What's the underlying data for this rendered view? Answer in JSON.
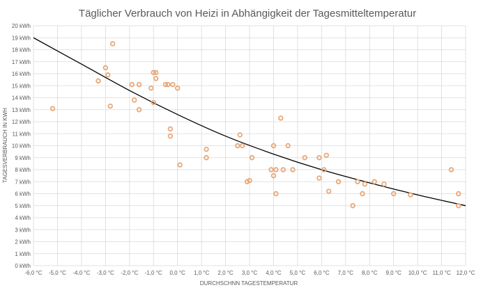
{
  "chart_data": {
    "type": "scatter",
    "title": "Täglicher Verbrauch von Heizi in Abhängigkeit der Tagesmitteltemperatur",
    "xlabel": "DURCHSCHNN TAGESTEMPERATUR",
    "ylabel": "TAGESVERBRAUCH IN KWH",
    "xlim": [
      -6,
      12
    ],
    "ylim": [
      0,
      20
    ],
    "x_ticks": [
      -6,
      -5,
      -4,
      -3,
      -2,
      -1,
      0,
      1,
      2,
      3,
      4,
      5,
      6,
      7,
      8,
      9,
      10,
      11,
      12
    ],
    "x_tick_labels": [
      "-6,0 °C",
      "-5,0 °C",
      "-4,0 °C",
      "-3,0 °C",
      "-2,0 °C",
      "-1,0 °C",
      "0,0 °C",
      "1,0 °C",
      "2,0 °C",
      "3,0 °C",
      "4,0 °C",
      "5,0 °C",
      "6,0 °C",
      "7,0 °C",
      "8,0 °C",
      "9,0 °C",
      "10,0 °C",
      "11,0 °C",
      "12,0 °C"
    ],
    "y_ticks": [
      0,
      1,
      2,
      3,
      4,
      5,
      6,
      7,
      8,
      9,
      10,
      11,
      12,
      13,
      14,
      15,
      16,
      17,
      18,
      19,
      20
    ],
    "y_tick_labels": [
      "0 kWh",
      "1 kWh",
      "2 kWh",
      "3 kWh",
      "4 kWh",
      "5 kWh",
      "6 kWh",
      "7 kWh",
      "8 kWh",
      "9 kWh",
      "10 kWh",
      "11 kWh",
      "12 kWh",
      "13 kWh",
      "14 kWh",
      "15 kWh",
      "16 kWh",
      "17 kWh",
      "18 kWh",
      "19 kWh",
      "20 kWh"
    ],
    "grid": true,
    "marker_color": "#e8a878",
    "trend_color": "#000000",
    "grid_color": "#d9d9d9",
    "points": [
      {
        "x": -5.2,
        "y": 13.1
      },
      {
        "x": -3.3,
        "y": 15.4
      },
      {
        "x": -3.0,
        "y": 16.5
      },
      {
        "x": -2.9,
        "y": 15.9
      },
      {
        "x": -2.8,
        "y": 13.3
      },
      {
        "x": -2.7,
        "y": 18.5
      },
      {
        "x": -1.9,
        "y": 15.1
      },
      {
        "x": -1.8,
        "y": 13.8
      },
      {
        "x": -1.6,
        "y": 13.0
      },
      {
        "x": -1.6,
        "y": 15.1
      },
      {
        "x": -1.1,
        "y": 14.8
      },
      {
        "x": -1.0,
        "y": 16.1
      },
      {
        "x": -0.9,
        "y": 16.1
      },
      {
        "x": -0.9,
        "y": 15.6
      },
      {
        "x": -1.0,
        "y": 13.6
      },
      {
        "x": -0.5,
        "y": 15.1
      },
      {
        "x": -0.4,
        "y": 15.1
      },
      {
        "x": -0.2,
        "y": 15.1
      },
      {
        "x": 0.0,
        "y": 14.8
      },
      {
        "x": -0.3,
        "y": 11.4
      },
      {
        "x": -0.3,
        "y": 10.8
      },
      {
        "x": 0.1,
        "y": 8.4
      },
      {
        "x": 1.2,
        "y": 9.7
      },
      {
        "x": 1.2,
        "y": 9.0
      },
      {
        "x": 2.5,
        "y": 10.0
      },
      {
        "x": 2.6,
        "y": 10.9
      },
      {
        "x": 2.7,
        "y": 10.0
      },
      {
        "x": 2.9,
        "y": 7.0
      },
      {
        "x": 3.0,
        "y": 7.1
      },
      {
        "x": 3.1,
        "y": 9.0
      },
      {
        "x": 3.9,
        "y": 8.0
      },
      {
        "x": 4.0,
        "y": 10.0
      },
      {
        "x": 4.0,
        "y": 7.5
      },
      {
        "x": 4.1,
        "y": 8.0
      },
      {
        "x": 4.1,
        "y": 6.0
      },
      {
        "x": 4.3,
        "y": 12.3
      },
      {
        "x": 4.4,
        "y": 8.0
      },
      {
        "x": 4.6,
        "y": 10.0
      },
      {
        "x": 4.8,
        "y": 8.0
      },
      {
        "x": 5.3,
        "y": 9.0
      },
      {
        "x": 5.9,
        "y": 9.0
      },
      {
        "x": 5.9,
        "y": 7.3
      },
      {
        "x": 6.1,
        "y": 8.0
      },
      {
        "x": 6.2,
        "y": 9.2
      },
      {
        "x": 6.3,
        "y": 6.2
      },
      {
        "x": 6.7,
        "y": 7.0
      },
      {
        "x": 7.3,
        "y": 5.0
      },
      {
        "x": 7.5,
        "y": 7.0
      },
      {
        "x": 7.7,
        "y": 6.0
      },
      {
        "x": 7.8,
        "y": 6.8
      },
      {
        "x": 8.2,
        "y": 7.0
      },
      {
        "x": 8.6,
        "y": 6.8
      },
      {
        "x": 9.0,
        "y": 6.0
      },
      {
        "x": 9.7,
        "y": 5.9
      },
      {
        "x": 11.4,
        "y": 8.0
      },
      {
        "x": 11.7,
        "y": 6.0
      },
      {
        "x": 11.7,
        "y": 5.0
      }
    ],
    "trendline": {
      "type": "exponential",
      "x": [
        -6,
        -4,
        -2,
        0,
        2,
        4,
        6,
        8,
        10,
        12
      ],
      "y": [
        19.0,
        16.8,
        14.6,
        12.6,
        10.8,
        9.3,
        8.0,
        6.9,
        5.9,
        5.0
      ]
    }
  }
}
